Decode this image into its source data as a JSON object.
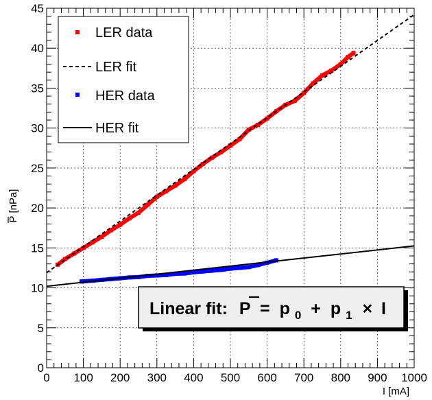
{
  "chart_data": {
    "type": "scatter",
    "xlabel": "I [mA]",
    "ylabel": "P [nPa]",
    "ylabel_overbar": true,
    "xlim": [
      0,
      1000
    ],
    "ylim": [
      0,
      45
    ],
    "x_ticks": [
      "0",
      "100",
      "200",
      "300",
      "400",
      "500",
      "600",
      "700",
      "800",
      "900",
      "1000"
    ],
    "y_ticks": [
      "0",
      "5",
      "10",
      "15",
      "20",
      "25",
      "30",
      "35",
      "40",
      "45"
    ],
    "grid": true,
    "legend_position": "top-left",
    "series": [
      {
        "name": "LER data",
        "kind": "points",
        "color": "#ff0000",
        "x": [
          30,
          50,
          75,
          100,
          125,
          150,
          175,
          200,
          225,
          250,
          275,
          300,
          325,
          350,
          375,
          400,
          425,
          450,
          475,
          500,
          525,
          550,
          575,
          600,
          625,
          650,
          675,
          700,
          725,
          750,
          775,
          800,
          820,
          835
        ],
        "y": [
          12.9,
          13.6,
          14.3,
          15.0,
          15.7,
          16.4,
          17.2,
          17.9,
          18.7,
          19.4,
          20.4,
          21.4,
          22.1,
          22.8,
          23.6,
          24.6,
          25.5,
          26.3,
          27.0,
          27.8,
          28.6,
          29.8,
          30.4,
          31.2,
          32.1,
          32.9,
          33.4,
          34.4,
          35.6,
          36.6,
          37.2,
          38.0,
          38.9,
          39.4
        ]
      },
      {
        "name": "LER fit",
        "kind": "line",
        "style": "dashed",
        "color": "#000000",
        "x": [
          0,
          1000
        ],
        "y": [
          11.9,
          44.2
        ]
      },
      {
        "name": "HER data",
        "kind": "points",
        "color": "#0000ff",
        "x": [
          95,
          125,
          150,
          175,
          200,
          225,
          250,
          275,
          300,
          325,
          350,
          375,
          400,
          425,
          450,
          475,
          500,
          525,
          550,
          575,
          600,
          625
        ],
        "y": [
          10.8,
          10.9,
          11.0,
          11.1,
          11.2,
          11.3,
          11.35,
          11.5,
          11.55,
          11.6,
          11.75,
          11.8,
          11.95,
          12.05,
          12.15,
          12.25,
          12.4,
          12.5,
          12.6,
          12.85,
          13.15,
          13.45
        ]
      },
      {
        "name": "HER fit",
        "kind": "line",
        "style": "solid",
        "color": "#000000",
        "x": [
          0,
          1000
        ],
        "y": [
          10.2,
          15.25
        ]
      }
    ],
    "annotation": {
      "prefix": "Linear fit:",
      "lhs": "P",
      "eq": "=",
      "p0": "p",
      "p0_sub": "0",
      "plus": "+",
      "p1": "p",
      "p1_sub": "1",
      "times": "×",
      "var": "I"
    }
  }
}
